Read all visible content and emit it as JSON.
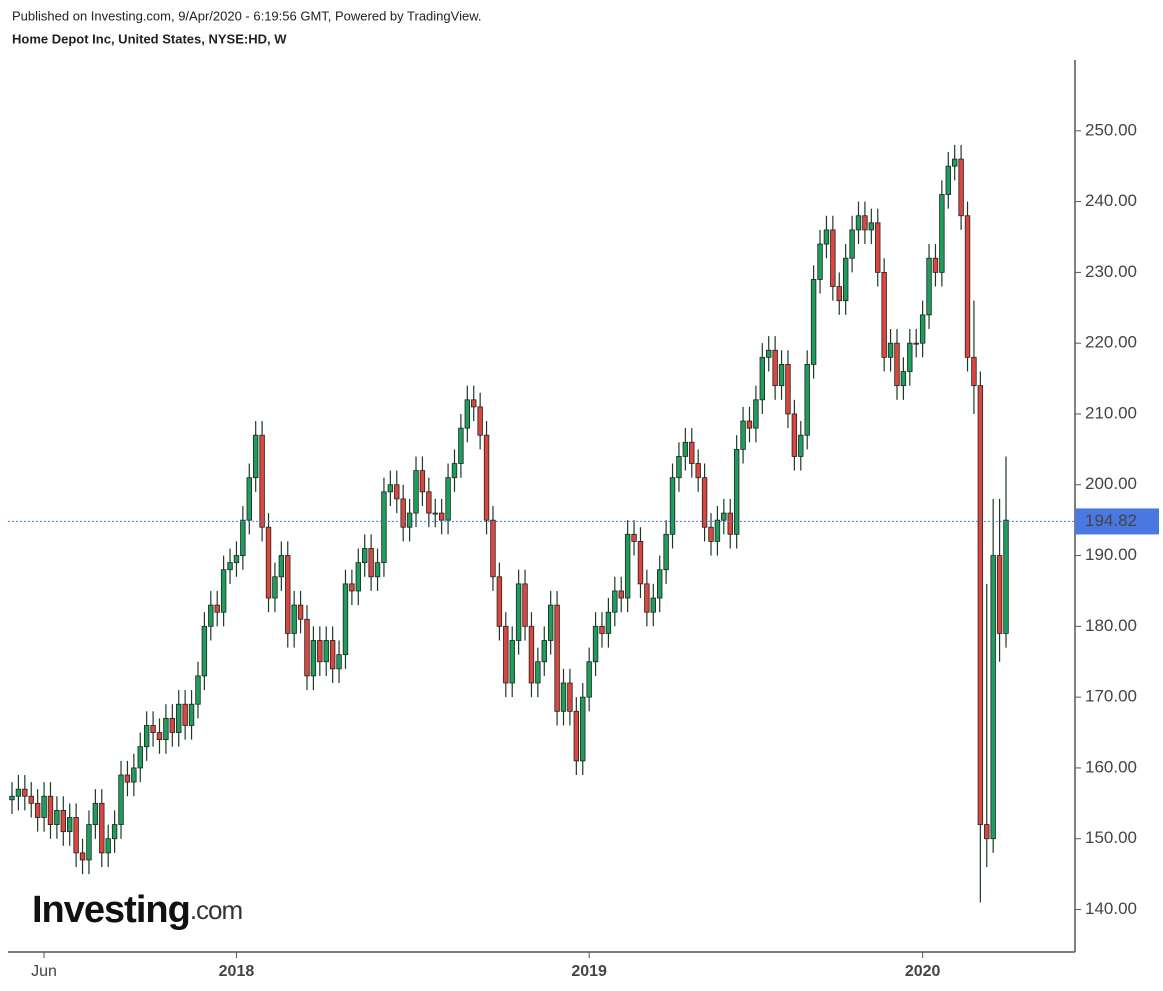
{
  "header": {
    "published": "Published on Investing.com, 9/Apr/2020 - 6:19:56 GMT, Powered by TradingView.",
    "symbol": "Home Depot Inc, United States, NYSE:HD, W"
  },
  "logo": {
    "brand": "Investing",
    "suffix": ".com"
  },
  "chart_data": {
    "type": "candlestick",
    "categories": [
      null,
      null,
      null,
      null,
      null,
      "Jun",
      null,
      null,
      null,
      null,
      null,
      null,
      null,
      null,
      null,
      null,
      null,
      null,
      null,
      null,
      null,
      null,
      null,
      null,
      null,
      null,
      null,
      null,
      null,
      null,
      null,
      null,
      null,
      null,
      null,
      "2018",
      null,
      null,
      null,
      null,
      null,
      null,
      null,
      null,
      null,
      null,
      null,
      null,
      null,
      null,
      null,
      null,
      null,
      null,
      null,
      null,
      null,
      null,
      null,
      null,
      null,
      null,
      null,
      null,
      null,
      null,
      null,
      null,
      null,
      null,
      null,
      null,
      null,
      null,
      null,
      null,
      null,
      null,
      null,
      null,
      null,
      null,
      null,
      null,
      null,
      null,
      null,
      null,
      null,
      null,
      "2019",
      null,
      null,
      null,
      null,
      null,
      null,
      null,
      null,
      null,
      null,
      null,
      null,
      null,
      null,
      null,
      null,
      null,
      null,
      null,
      null,
      null,
      null,
      null,
      null,
      null,
      null,
      null,
      null,
      null,
      null,
      null,
      null,
      null,
      null,
      null,
      null,
      null,
      null,
      null,
      null,
      null,
      null,
      null,
      null,
      null,
      null,
      null,
      null,
      null,
      null,
      null,
      "2020",
      null,
      null,
      null,
      null,
      null,
      null,
      null,
      null,
      null,
      null,
      null,
      null,
      null
    ],
    "open": [
      155.5,
      156,
      157,
      156,
      155,
      153,
      156,
      152,
      154,
      151,
      153,
      148,
      147,
      152,
      155,
      148,
      150,
      152,
      159,
      158,
      160,
      163,
      166,
      165,
      164,
      167,
      165,
      169,
      166,
      169,
      173,
      180,
      183,
      182,
      188,
      189,
      190,
      195,
      201,
      207,
      194,
      184,
      187,
      190,
      179,
      183,
      181,
      173,
      178,
      175,
      178,
      174,
      176,
      186,
      185,
      189,
      191,
      187,
      189,
      199,
      200,
      198,
      194,
      196,
      202,
      199,
      196,
      196,
      195,
      201,
      203,
      208,
      212,
      211,
      207,
      195,
      187,
      180,
      172,
      178,
      186,
      180,
      172,
      175,
      178,
      183,
      168,
      172,
      168,
      161,
      170,
      175,
      180,
      179,
      182,
      185,
      184,
      193,
      192,
      186,
      182,
      184,
      188,
      193,
      201,
      204,
      206,
      203,
      201,
      194,
      192,
      195,
      196,
      193,
      205,
      209,
      208,
      212,
      218,
      219,
      214,
      217,
      210,
      204,
      207,
      217,
      229,
      234,
      236,
      228,
      226,
      232,
      236,
      238,
      236,
      237,
      230,
      218,
      220,
      214,
      216,
      220,
      220,
      224,
      232,
      230,
      241,
      245,
      246,
      238,
      218,
      214,
      152,
      150,
      190,
      179
    ],
    "high": [
      158,
      159,
      159,
      158,
      157,
      158,
      158,
      156,
      156,
      155,
      155,
      150,
      154,
      157,
      157,
      152,
      154,
      161,
      161,
      162,
      165,
      168,
      168,
      167,
      169,
      169,
      171,
      171,
      171,
      175,
      182,
      185,
      185,
      190,
      191,
      192,
      197,
      203,
      209,
      209,
      196,
      189,
      192,
      192,
      185,
      185,
      183,
      180,
      180,
      180,
      180,
      178,
      188,
      188,
      191,
      193,
      193,
      191,
      201,
      202,
      202,
      200,
      198,
      204,
      204,
      201,
      198,
      198,
      203,
      205,
      210,
      214,
      214,
      213,
      209,
      197,
      189,
      182,
      180,
      188,
      188,
      182,
      177,
      180,
      185,
      185,
      174,
      174,
      170,
      172,
      177,
      182,
      182,
      184,
      187,
      187,
      195,
      195,
      194,
      188,
      186,
      190,
      195,
      203,
      206,
      208,
      208,
      205,
      203,
      196,
      197,
      198,
      198,
      207,
      211,
      211,
      214,
      220,
      221,
      221,
      219,
      219,
      212,
      209,
      219,
      231,
      236,
      238,
      238,
      230,
      234,
      238,
      240,
      240,
      239,
      239,
      232,
      222,
      222,
      218,
      222,
      222,
      226,
      234,
      234,
      243,
      247,
      248,
      248,
      240,
      226,
      216,
      186,
      198,
      198,
      204
    ],
    "low": [
      153.5,
      154,
      154,
      153,
      151,
      151,
      150,
      150,
      149,
      149,
      146,
      145,
      145,
      150,
      146,
      146,
      148,
      150,
      156,
      156,
      158,
      161,
      163,
      162,
      162,
      163,
      163,
      164,
      164,
      167,
      171,
      178,
      180,
      180,
      186,
      187,
      188,
      193,
      199,
      192,
      182,
      182,
      185,
      177,
      177,
      179,
      171,
      171,
      173,
      173,
      172,
      172,
      174,
      183,
      183,
      187,
      185,
      185,
      187,
      197,
      196,
      192,
      192,
      194,
      197,
      194,
      194,
      193,
      193,
      199,
      201,
      206,
      209,
      205,
      193,
      185,
      178,
      170,
      170,
      176,
      178,
      170,
      170,
      173,
      176,
      166,
      166,
      166,
      159,
      159,
      168,
      173,
      177,
      177,
      180,
      182,
      182,
      190,
      184,
      180,
      180,
      182,
      186,
      191,
      199,
      202,
      201,
      199,
      192,
      190,
      190,
      193,
      191,
      191,
      203,
      206,
      206,
      210,
      216,
      212,
      212,
      208,
      202,
      202,
      205,
      215,
      227,
      232,
      226,
      224,
      224,
      230,
      234,
      234,
      234,
      228,
      216,
      216,
      212,
      212,
      214,
      218,
      218,
      222,
      228,
      228,
      239,
      243,
      236,
      216,
      210,
      141,
      146,
      148,
      175,
      177
    ],
    "close": [
      156,
      157,
      156,
      155,
      153,
      156,
      152,
      154,
      151,
      153,
      148,
      147,
      152,
      155,
      148,
      150,
      152,
      159,
      158,
      160,
      163,
      166,
      165,
      164,
      167,
      165,
      169,
      166,
      169,
      173,
      180,
      183,
      182,
      188,
      189,
      190,
      195,
      201,
      207,
      194,
      184,
      187,
      190,
      179,
      183,
      181,
      173,
      178,
      175,
      178,
      174,
      176,
      186,
      185,
      189,
      191,
      187,
      189,
      199,
      200,
      198,
      194,
      196,
      202,
      199,
      196,
      196,
      195,
      201,
      203,
      208,
      212,
      211,
      207,
      195,
      187,
      180,
      172,
      178,
      186,
      180,
      172,
      175,
      178,
      183,
      168,
      172,
      168,
      161,
      170,
      175,
      180,
      179,
      182,
      185,
      184,
      193,
      192,
      186,
      182,
      184,
      188,
      193,
      201,
      204,
      206,
      203,
      201,
      194,
      192,
      195,
      196,
      193,
      205,
      209,
      208,
      212,
      218,
      219,
      214,
      217,
      210,
      204,
      207,
      217,
      229,
      234,
      236,
      228,
      226,
      232,
      236,
      238,
      236,
      237,
      230,
      218,
      220,
      214,
      216,
      220,
      220,
      224,
      232,
      230,
      241,
      245,
      246,
      238,
      218,
      214,
      152,
      150,
      190,
      179,
      195
    ],
    "up_color": "#1e9e5c",
    "down_color": "#d9473f",
    "last_price": {
      "value": 194.82,
      "label": "194.82"
    },
    "last_price_color": "#4a78e0",
    "ylim": [
      134,
      260
    ],
    "yticks": [
      {
        "value": 140,
        "label": "140.00"
      },
      {
        "value": 150,
        "label": "150.00"
      },
      {
        "value": 160,
        "label": "160.00"
      },
      {
        "value": 170,
        "label": "170.00"
      },
      {
        "value": 180,
        "label": "180.00"
      },
      {
        "value": 190,
        "label": "190.00"
      },
      {
        "value": 200,
        "label": "200.00"
      },
      {
        "value": 210,
        "label": "210.00"
      },
      {
        "value": 220,
        "label": "220.00"
      },
      {
        "value": 230,
        "label": "230.00"
      },
      {
        "value": 240,
        "label": "240.00"
      },
      {
        "value": 250,
        "label": "250.00"
      }
    ]
  }
}
